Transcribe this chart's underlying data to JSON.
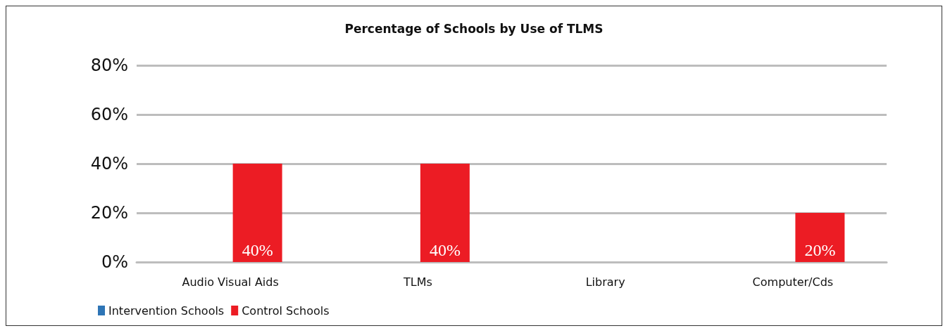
{
  "chart_data": {
    "type": "bar",
    "title": "Percentage of Schools by Use of TLMS",
    "categories": [
      "Audio Visual Aids",
      "TLMs",
      "Library",
      "Computer/Cds"
    ],
    "series": [
      {
        "name": "Intervention Schools",
        "color": "#2e75b6",
        "values": [
          0,
          0,
          0,
          0
        ]
      },
      {
        "name": "Control Schools",
        "color": "#ec1c24",
        "values": [
          40,
          40,
          0,
          20
        ],
        "value_labels": [
          "40%",
          "40%",
          null,
          "20%"
        ]
      }
    ],
    "ylim": [
      0,
      80
    ],
    "yticks": [
      {
        "value": 0,
        "label": "0%"
      },
      {
        "value": 20,
        "label": "20%"
      },
      {
        "value": 40,
        "label": "40%"
      },
      {
        "value": 60,
        "label": "60%"
      },
      {
        "value": 80,
        "label": "80%"
      }
    ],
    "grid": "y",
    "legend": "bottom left"
  }
}
